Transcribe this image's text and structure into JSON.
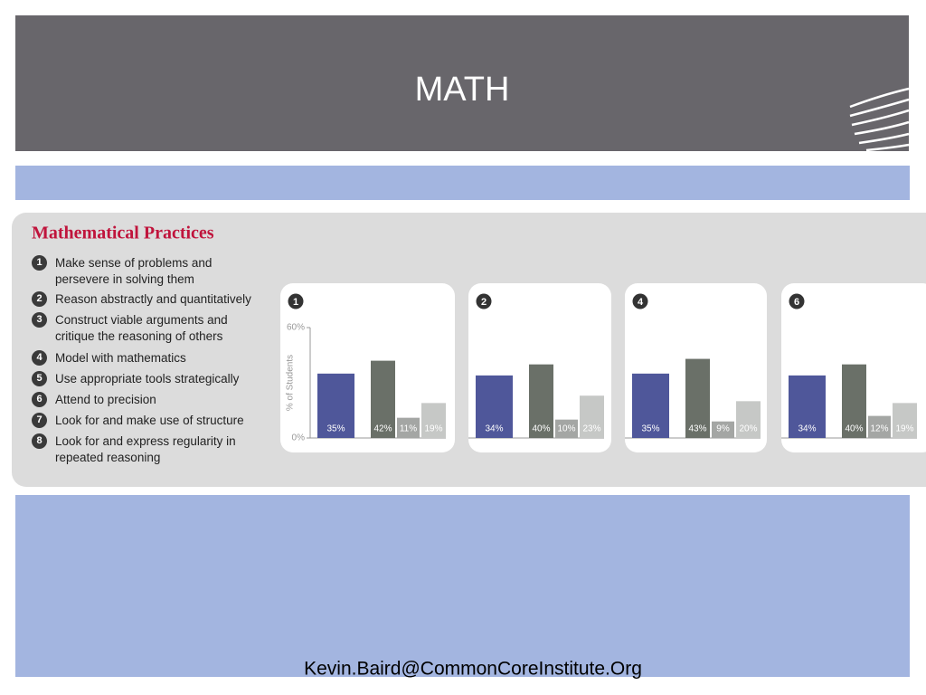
{
  "header": {
    "title": "MATH"
  },
  "practices": {
    "title": "Mathematical Practices",
    "items": [
      {
        "number": "1",
        "text": "Make sense of problems and persevere in solving them"
      },
      {
        "number": "2",
        "text": "Reason abstractly and quantitatively"
      },
      {
        "number": "3",
        "text": "Construct viable arguments and critique the reasoning of others"
      },
      {
        "number": "4",
        "text": "Model with mathematics"
      },
      {
        "number": "5",
        "text": "Use appropriate tools strategically"
      },
      {
        "number": "6",
        "text": "Attend to precision"
      },
      {
        "number": "7",
        "text": "Look for and make use of structure"
      },
      {
        "number": "8",
        "text": "Look for and express regularity in repeated reasoning"
      }
    ]
  },
  "chart_data": [
    {
      "type": "bar",
      "title": "1",
      "ylabel": "% of Students",
      "ylim": [
        0,
        60
      ],
      "yticks": [
        {
          "value": 0,
          "label": "0%"
        },
        {
          "value": 60,
          "label": "60%"
        }
      ],
      "values": [
        35,
        42,
        11,
        19
      ],
      "value_labels": [
        "35%",
        "42%",
        "11%",
        "19%"
      ],
      "colors": [
        "#4f579a",
        "#6a7068",
        "#a4a6a4",
        "#c6c8c6"
      ]
    },
    {
      "type": "bar",
      "title": "2",
      "ylim": [
        0,
        60
      ],
      "values": [
        34,
        40,
        10,
        23
      ],
      "value_labels": [
        "34%",
        "40%",
        "10%",
        "23%"
      ],
      "colors": [
        "#4f579a",
        "#6a7068",
        "#a4a6a4",
        "#c6c8c6"
      ]
    },
    {
      "type": "bar",
      "title": "4",
      "ylim": [
        0,
        60
      ],
      "values": [
        35,
        43,
        9,
        20
      ],
      "value_labels": [
        "35%",
        "43%",
        "9%",
        "20%"
      ],
      "colors": [
        "#4f579a",
        "#6a7068",
        "#a4a6a4",
        "#c6c8c6"
      ]
    },
    {
      "type": "bar",
      "title": "6",
      "ylim": [
        0,
        60
      ],
      "values": [
        34,
        40,
        12,
        19
      ],
      "value_labels": [
        "34%",
        "40%",
        "12%",
        "19%"
      ],
      "colors": [
        "#4f579a",
        "#6a7068",
        "#a4a6a4",
        "#c6c8c6"
      ]
    }
  ],
  "footer": {
    "email": "Kevin.Baird@CommonCoreInstitute.Org"
  }
}
